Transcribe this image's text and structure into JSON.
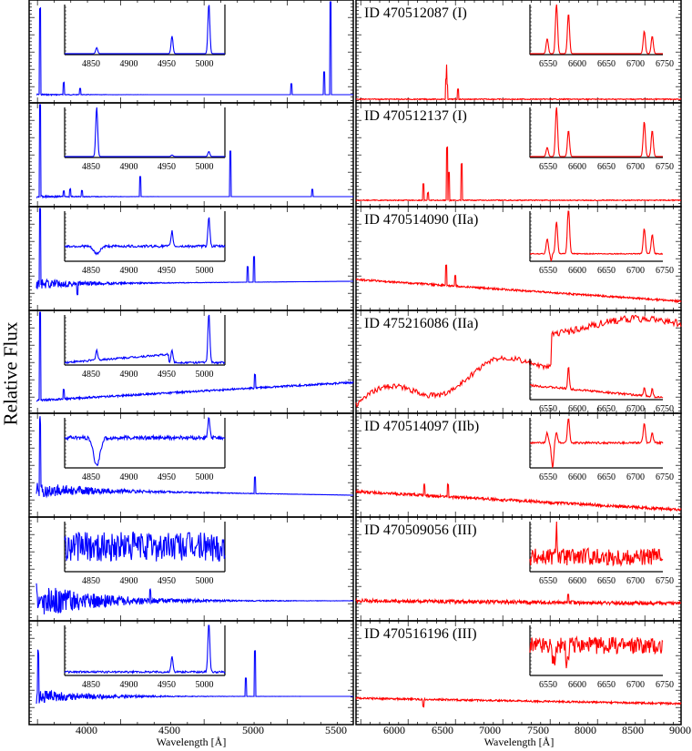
{
  "figure": {
    "ylabel": "Relative Flux",
    "left_xlabel": "Wavelength [Å]",
    "right_xlabel": "Wavelength [Å]",
    "left_ticks": [
      "4000",
      "4500",
      "5000",
      "5500"
    ],
    "right_ticks": [
      "6000",
      "6500",
      "7000",
      "7500",
      "8000",
      "8500",
      "9000"
    ],
    "inset_blue_ticks": [
      "4850",
      "4900",
      "4950",
      "5000"
    ],
    "inset_red_ticks": [
      "6550",
      "6600",
      "6650",
      "6700",
      "6750"
    ],
    "colors": {
      "blue": "#0000ff",
      "red": "#ff0000",
      "axis": "#000000"
    }
  },
  "panels": [
    {
      "id_label": "ID 470512087 (I)"
    },
    {
      "id_label": "ID 470512137 (I)"
    },
    {
      "id_label": "ID 470514090 (IIa)"
    },
    {
      "id_label": "ID 475216086 (IIa)"
    },
    {
      "id_label": "ID 470514097 (IIb)"
    },
    {
      "id_label": "ID 470509056 (III)"
    },
    {
      "id_label": "ID 470516196 (III)"
    }
  ],
  "chart_data": {
    "type": "line",
    "title": "",
    "ylabel": "Relative Flux",
    "layout": "7 rows x 2 columns of spectrum panels with insets",
    "left_column": {
      "xlabel": "Wavelength [Å]",
      "xlim": [
        3700,
        5600
      ],
      "color": "#0000ff",
      "xticks": [
        4000,
        4500,
        5000,
        5500
      ],
      "inset_xlim": [
        4820,
        5030
      ],
      "inset_xticks": [
        4850,
        4900,
        4950,
        5000
      ]
    },
    "right_column": {
      "xlabel": "Wavelength [Å]",
      "xlim": [
        5600,
        9000
      ],
      "color": "#ff0000",
      "xticks": [
        6000,
        6500,
        7000,
        7500,
        8000,
        8500,
        9000
      ],
      "inset_xlim": [
        6520,
        6750
      ],
      "inset_xticks": [
        6550,
        6600,
        6650,
        6700,
        6750
      ]
    },
    "series": [
      {
        "name": "ID 470512087 (I)",
        "type": "I",
        "notes": "strong emission lines: [OII]3727, [OIII]4959/5007, Hβ, Hα, [NII], [SII]"
      },
      {
        "name": "ID 470512137 (I)",
        "type": "I",
        "notes": "strong emission lines, Hβ dominant in blue inset"
      },
      {
        "name": "ID 470514090 (IIa)",
        "type": "IIa",
        "notes": "emission + absorption, declining red continuum"
      },
      {
        "name": "ID 475216086 (IIa)",
        "type": "IIa",
        "notes": "rising blue continuum, molecular bands in red (M-star like)"
      },
      {
        "name": "ID 470514097 (IIb)",
        "type": "IIb",
        "notes": "Balmer absorption with weak emission"
      },
      {
        "name": "ID 470509056 (III)",
        "type": "III",
        "notes": "noisy, no clear lines"
      },
      {
        "name": "ID 470516196 (III)",
        "type": "III",
        "notes": "weak [OIII] emission, flat red continuum"
      }
    ]
  }
}
